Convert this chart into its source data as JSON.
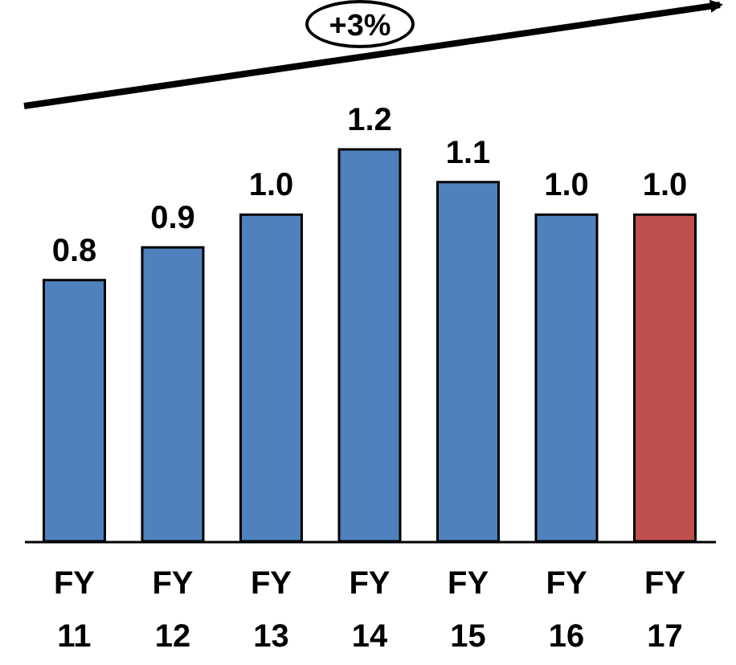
{
  "chart_data": {
    "type": "bar",
    "categories": [
      "FY 11",
      "FY 12",
      "FY 13",
      "FY 14",
      "FY 15",
      "FY 16",
      "FY 17"
    ],
    "values": [
      0.8,
      0.9,
      1.0,
      1.2,
      1.1,
      1.0,
      1.0
    ],
    "colors": [
      "#4f81bd",
      "#4f81bd",
      "#4f81bd",
      "#4f81bd",
      "#4f81bd",
      "#4f81bd",
      "#c0504d"
    ],
    "value_labels": [
      "0.8",
      "0.9",
      "1.0",
      "1.2",
      "1.1",
      "1.0",
      "1.0"
    ],
    "annotations": [
      "+3%"
    ]
  }
}
